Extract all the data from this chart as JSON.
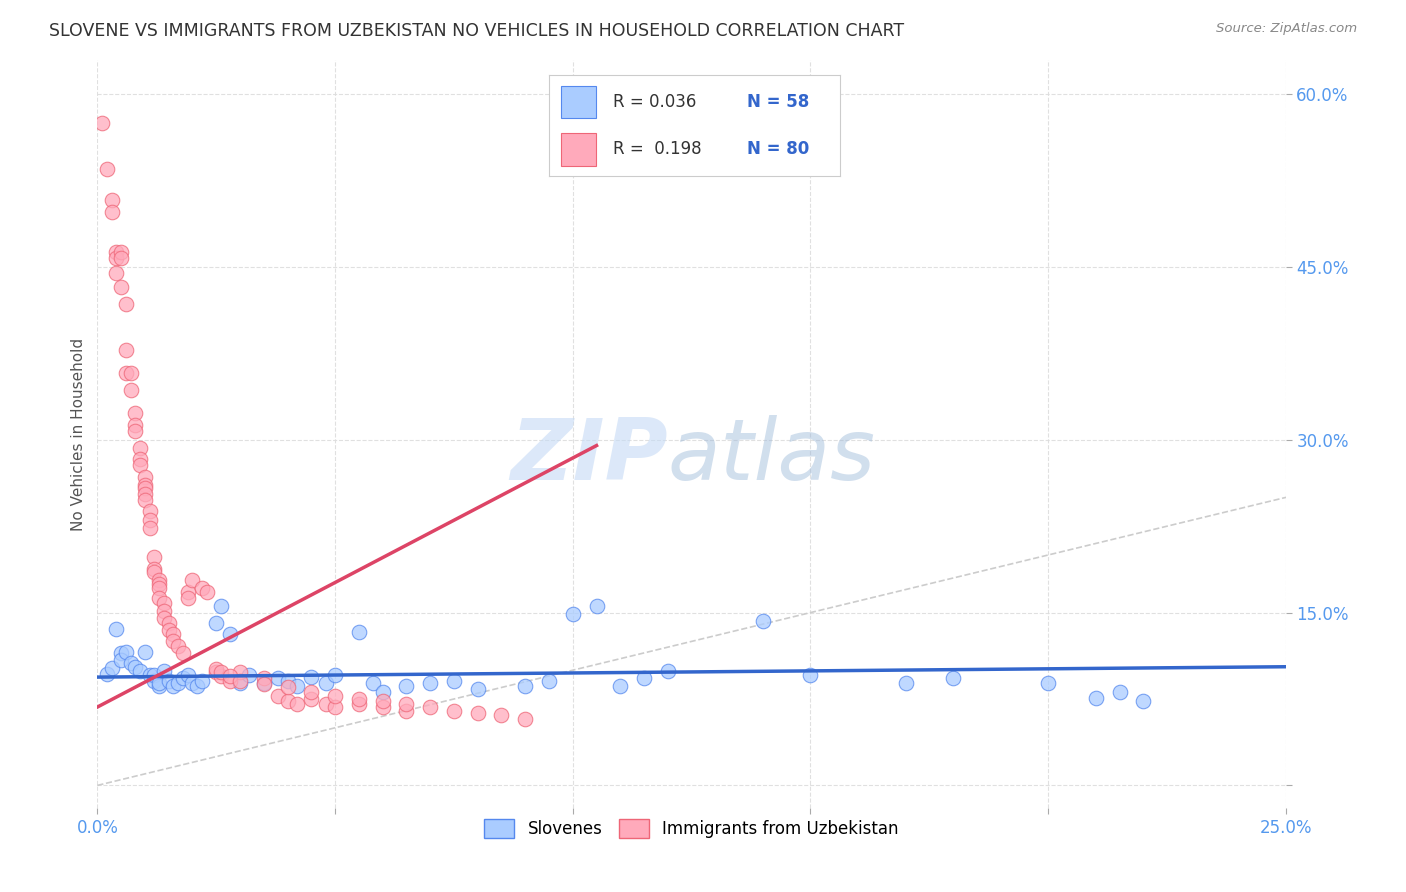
{
  "title": "SLOVENE VS IMMIGRANTS FROM UZBEKISTAN NO VEHICLES IN HOUSEHOLD CORRELATION CHART",
  "source": "Source: ZipAtlas.com",
  "ylabel": "No Vehicles in Household",
  "xlim": [
    0.0,
    0.25
  ],
  "ylim": [
    -0.02,
    0.63
  ],
  "y_ticks": [
    0.0,
    0.15,
    0.3,
    0.45,
    0.6
  ],
  "y_tick_labels": [
    "",
    "15.0%",
    "30.0%",
    "45.0%",
    "60.0%"
  ],
  "x_ticks": [
    0.0,
    0.05,
    0.1,
    0.15,
    0.2,
    0.25
  ],
  "x_tick_labels": [
    "0.0%",
    "",
    "",
    "",
    "",
    "25.0%"
  ],
  "bg_color": "#ffffff",
  "grid_color": "#dddddd",
  "title_color": "#333333",
  "tick_color": "#5599ee",
  "legend_R_blue": "R = 0.036",
  "legend_N_blue": "N = 58",
  "legend_R_pink": "R =  0.198",
  "legend_N_pink": "N = 80",
  "blue_dot_fill": "#aaccff",
  "blue_dot_edge": "#5588ee",
  "pink_dot_fill": "#ffaabb",
  "pink_dot_edge": "#ee6677",
  "blue_trend_color": "#3366cc",
  "pink_trend_color": "#dd4466",
  "diag_color": "#cccccc",
  "watermark_zip_color": "#c5daf5",
  "watermark_atlas_color": "#9ab8d8",
  "slovene_points": [
    [
      0.002,
      0.097
    ],
    [
      0.003,
      0.102
    ],
    [
      0.004,
      0.136
    ],
    [
      0.005,
      0.115
    ],
    [
      0.005,
      0.109
    ],
    [
      0.006,
      0.116
    ],
    [
      0.007,
      0.106
    ],
    [
      0.008,
      0.103
    ],
    [
      0.009,
      0.099
    ],
    [
      0.01,
      0.116
    ],
    [
      0.011,
      0.096
    ],
    [
      0.012,
      0.091
    ],
    [
      0.012,
      0.096
    ],
    [
      0.013,
      0.086
    ],
    [
      0.013,
      0.089
    ],
    [
      0.014,
      0.099
    ],
    [
      0.015,
      0.091
    ],
    [
      0.016,
      0.086
    ],
    [
      0.017,
      0.089
    ],
    [
      0.018,
      0.093
    ],
    [
      0.019,
      0.096
    ],
    [
      0.02,
      0.089
    ],
    [
      0.021,
      0.086
    ],
    [
      0.022,
      0.091
    ],
    [
      0.025,
      0.141
    ],
    [
      0.026,
      0.156
    ],
    [
      0.028,
      0.131
    ],
    [
      0.03,
      0.089
    ],
    [
      0.032,
      0.096
    ],
    [
      0.035,
      0.089
    ],
    [
      0.038,
      0.093
    ],
    [
      0.04,
      0.091
    ],
    [
      0.042,
      0.086
    ],
    [
      0.045,
      0.094
    ],
    [
      0.048,
      0.089
    ],
    [
      0.05,
      0.096
    ],
    [
      0.055,
      0.133
    ],
    [
      0.058,
      0.089
    ],
    [
      0.06,
      0.081
    ],
    [
      0.065,
      0.086
    ],
    [
      0.07,
      0.089
    ],
    [
      0.075,
      0.091
    ],
    [
      0.08,
      0.084
    ],
    [
      0.09,
      0.086
    ],
    [
      0.095,
      0.091
    ],
    [
      0.1,
      0.149
    ],
    [
      0.105,
      0.156
    ],
    [
      0.11,
      0.086
    ],
    [
      0.115,
      0.093
    ],
    [
      0.12,
      0.099
    ],
    [
      0.14,
      0.143
    ],
    [
      0.15,
      0.096
    ],
    [
      0.17,
      0.089
    ],
    [
      0.18,
      0.093
    ],
    [
      0.2,
      0.089
    ],
    [
      0.21,
      0.076
    ],
    [
      0.215,
      0.081
    ],
    [
      0.22,
      0.073
    ]
  ],
  "uzbek_points": [
    [
      0.001,
      0.575
    ],
    [
      0.002,
      0.535
    ],
    [
      0.003,
      0.508
    ],
    [
      0.003,
      0.498
    ],
    [
      0.004,
      0.463
    ],
    [
      0.004,
      0.458
    ],
    [
      0.004,
      0.445
    ],
    [
      0.005,
      0.463
    ],
    [
      0.005,
      0.458
    ],
    [
      0.005,
      0.433
    ],
    [
      0.006,
      0.418
    ],
    [
      0.006,
      0.378
    ],
    [
      0.006,
      0.358
    ],
    [
      0.007,
      0.358
    ],
    [
      0.007,
      0.343
    ],
    [
      0.008,
      0.323
    ],
    [
      0.008,
      0.313
    ],
    [
      0.008,
      0.308
    ],
    [
      0.009,
      0.293
    ],
    [
      0.009,
      0.283
    ],
    [
      0.009,
      0.278
    ],
    [
      0.01,
      0.268
    ],
    [
      0.01,
      0.261
    ],
    [
      0.01,
      0.258
    ],
    [
      0.01,
      0.253
    ],
    [
      0.01,
      0.248
    ],
    [
      0.011,
      0.238
    ],
    [
      0.011,
      0.23
    ],
    [
      0.011,
      0.223
    ],
    [
      0.012,
      0.198
    ],
    [
      0.012,
      0.188
    ],
    [
      0.012,
      0.185
    ],
    [
      0.013,
      0.178
    ],
    [
      0.013,
      0.175
    ],
    [
      0.013,
      0.171
    ],
    [
      0.013,
      0.163
    ],
    [
      0.014,
      0.158
    ],
    [
      0.014,
      0.151
    ],
    [
      0.014,
      0.145
    ],
    [
      0.015,
      0.141
    ],
    [
      0.015,
      0.135
    ],
    [
      0.016,
      0.131
    ],
    [
      0.016,
      0.125
    ],
    [
      0.017,
      0.121
    ],
    [
      0.018,
      0.115
    ],
    [
      0.019,
      0.168
    ],
    [
      0.019,
      0.163
    ],
    [
      0.02,
      0.178
    ],
    [
      0.022,
      0.171
    ],
    [
      0.023,
      0.168
    ],
    [
      0.025,
      0.098
    ],
    [
      0.026,
      0.095
    ],
    [
      0.028,
      0.091
    ],
    [
      0.03,
      0.098
    ],
    [
      0.035,
      0.093
    ],
    [
      0.038,
      0.078
    ],
    [
      0.04,
      0.073
    ],
    [
      0.042,
      0.071
    ],
    [
      0.045,
      0.075
    ],
    [
      0.048,
      0.071
    ],
    [
      0.05,
      0.068
    ],
    [
      0.055,
      0.071
    ],
    [
      0.06,
      0.068
    ],
    [
      0.065,
      0.065
    ],
    [
      0.025,
      0.101
    ],
    [
      0.026,
      0.098
    ],
    [
      0.028,
      0.095
    ],
    [
      0.03,
      0.091
    ],
    [
      0.035,
      0.088
    ],
    [
      0.04,
      0.085
    ],
    [
      0.045,
      0.081
    ],
    [
      0.05,
      0.078
    ],
    [
      0.055,
      0.075
    ],
    [
      0.06,
      0.073
    ],
    [
      0.065,
      0.071
    ],
    [
      0.07,
      0.068
    ],
    [
      0.075,
      0.065
    ],
    [
      0.08,
      0.063
    ],
    [
      0.085,
      0.061
    ],
    [
      0.09,
      0.058
    ]
  ],
  "blue_trend_x": [
    0.0,
    0.25
  ],
  "blue_trend_y": [
    0.094,
    0.103
  ],
  "pink_trend_x": [
    0.0,
    0.105
  ],
  "pink_trend_y": [
    0.068,
    0.295
  ]
}
